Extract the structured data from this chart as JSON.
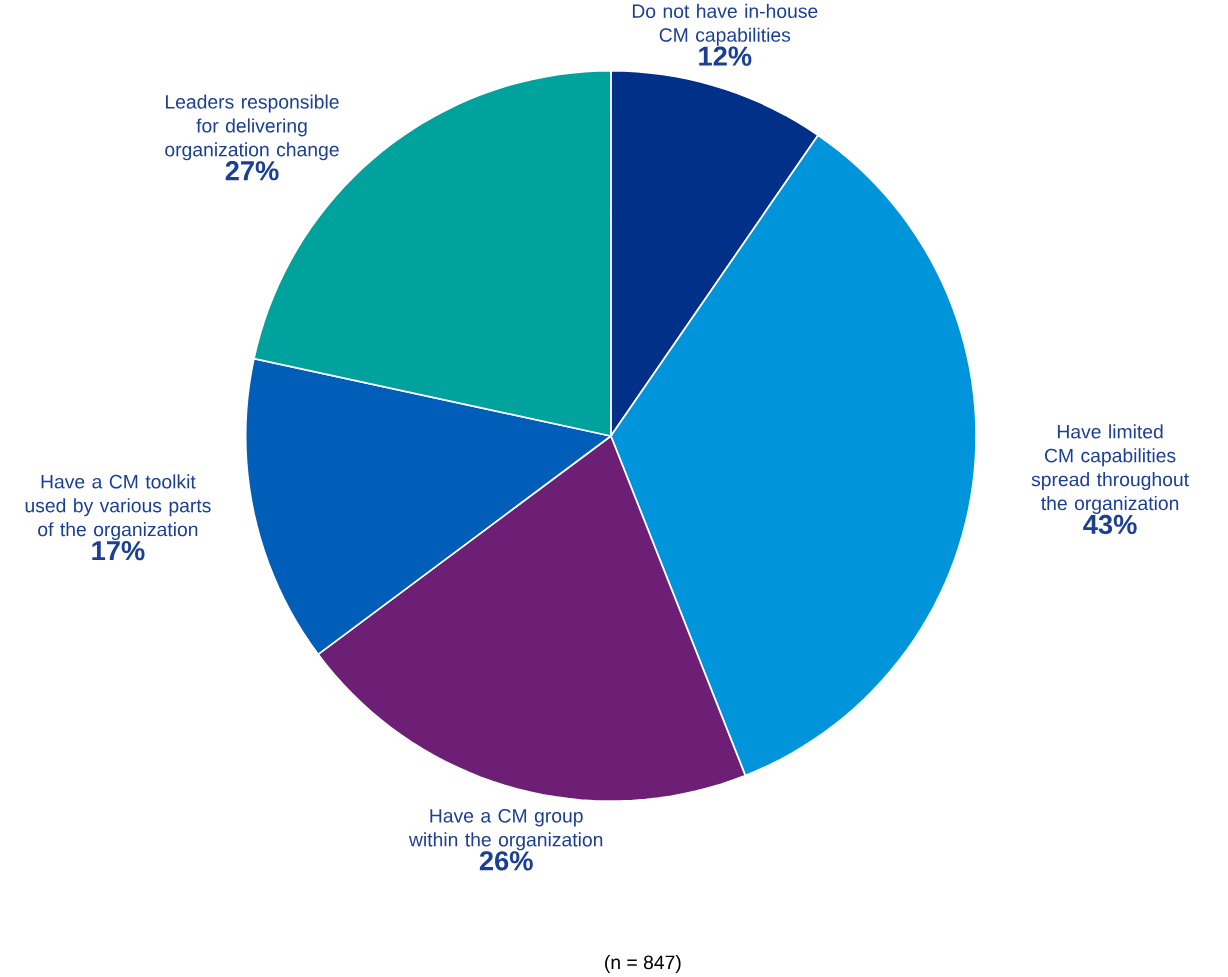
{
  "chart_data": {
    "type": "pie",
    "categories": [
      "Do not have in-house CM capabilities",
      "Have limited CM capabilities spread throughout the organization",
      "Have a CM group within the organization",
      "Have a CM toolkit used by various parts of the organization",
      "Leaders responsible for delivering organization change"
    ],
    "values": [
      12,
      43,
      26,
      17,
      27
    ],
    "value_labels": [
      "12%",
      "43%",
      "26%",
      "17%",
      "27%"
    ],
    "colors": [
      "#003087",
      "#0095db",
      "#6c1f75",
      "#005eb8",
      "#00a29e"
    ],
    "annotations": [
      "(n = 847)"
    ]
  }
}
